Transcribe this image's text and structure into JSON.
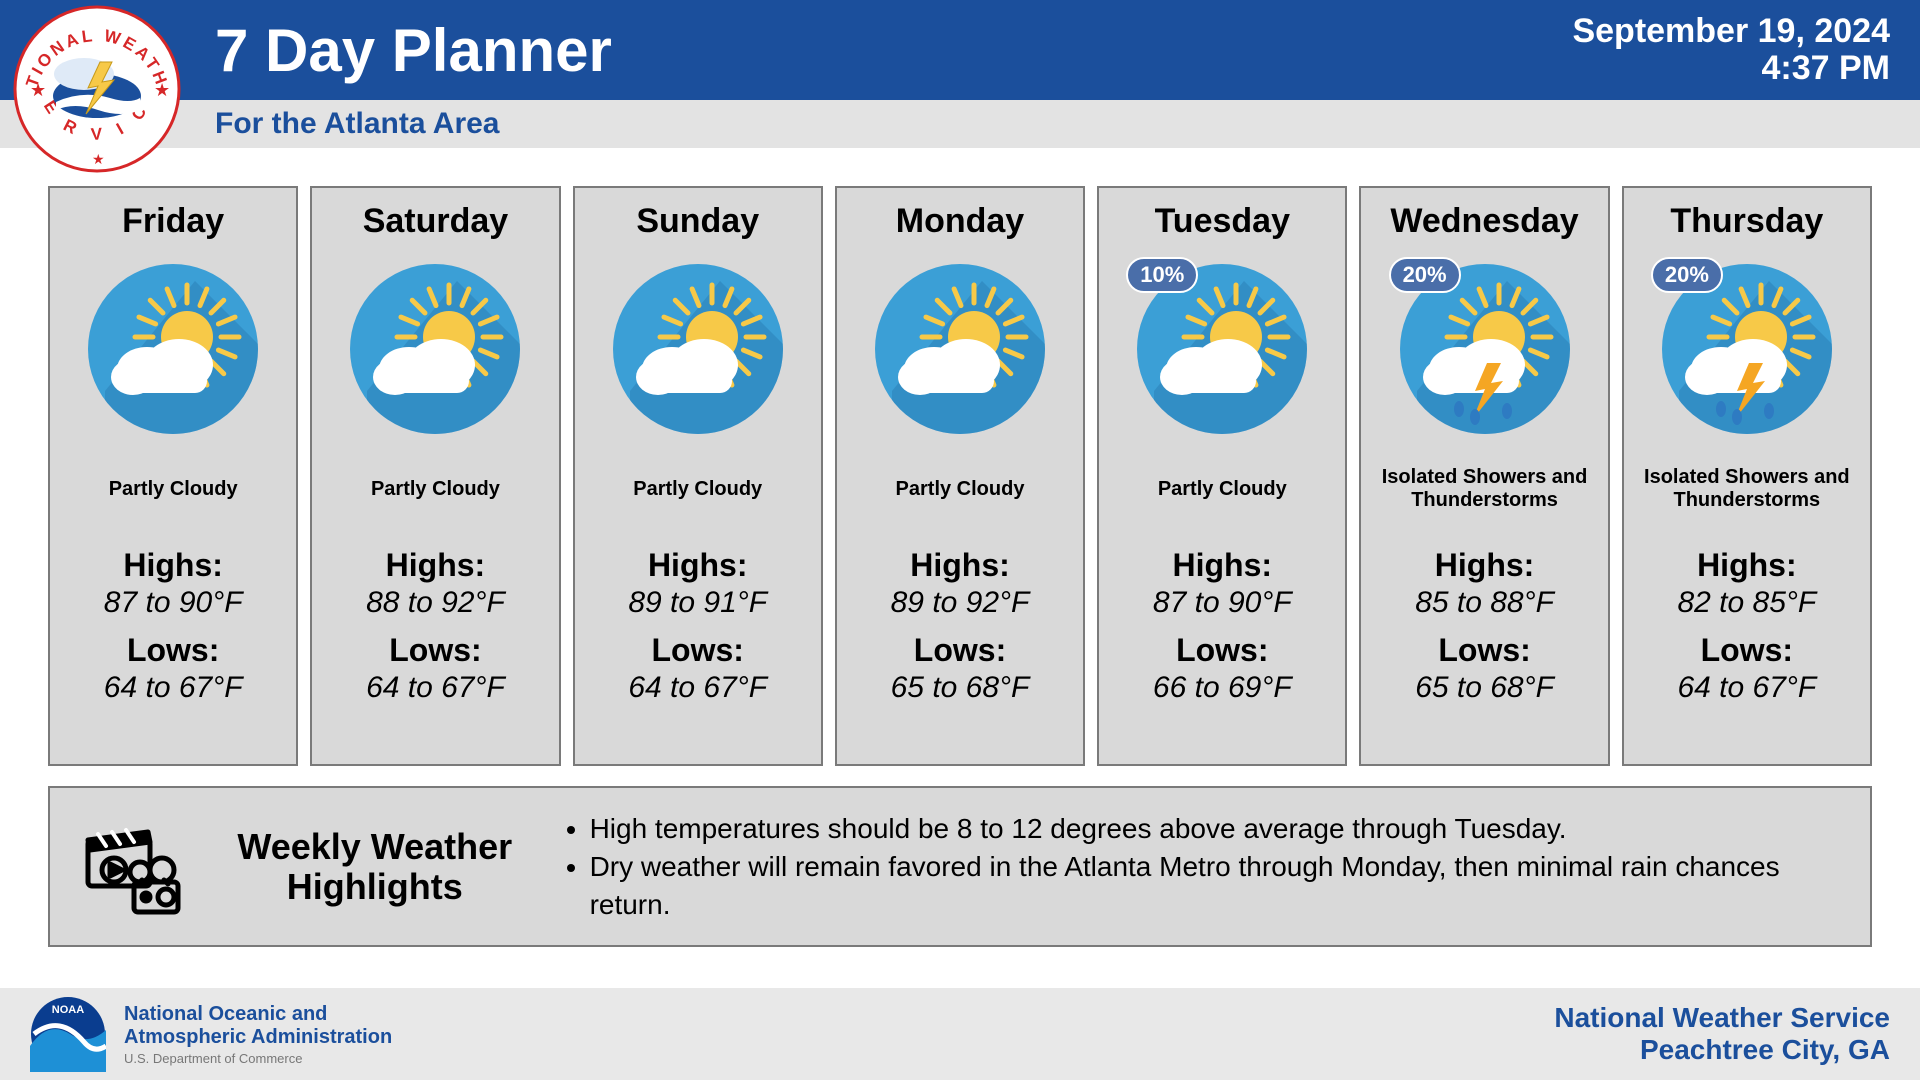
{
  "header": {
    "title": "7 Day Planner",
    "subtitle": "For the Atlanta Area",
    "date": "September 19, 2024",
    "time": "4:37 PM"
  },
  "colors": {
    "header_blue": "#1b4f9c",
    "header_sub_bg": "#e3e3e3",
    "card_bg": "#d9d9d9",
    "card_border": "#7a7a7a",
    "icon_circle": "#3b9fd6",
    "icon_circle_shadow": "#2c7fb8",
    "sun": "#f7c948",
    "cloud": "#ffffff",
    "bolt": "#f5a623",
    "rain": "#2e7bc2",
    "badge_bg": "#4a6ea9",
    "footer_bg": "#e8e8e8",
    "noaa_deep": "#0a3d8f",
    "noaa_light": "#1e90d6"
  },
  "days": [
    {
      "name": "Friday",
      "condition": "Partly Cloudy",
      "icon": "pc",
      "precip": null,
      "high": "87 to 90°F",
      "low": "64 to 67°F"
    },
    {
      "name": "Saturday",
      "condition": "Partly Cloudy",
      "icon": "pc",
      "precip": null,
      "high": "88 to 92°F",
      "low": "64 to 67°F"
    },
    {
      "name": "Sunday",
      "condition": "Partly Cloudy",
      "icon": "pc",
      "precip": null,
      "high": "89 to 91°F",
      "low": "64 to 67°F"
    },
    {
      "name": "Monday",
      "condition": "Partly Cloudy",
      "icon": "pc",
      "precip": null,
      "high": "89 to 92°F",
      "low": "65 to 68°F"
    },
    {
      "name": "Tuesday",
      "condition": "Partly Cloudy",
      "icon": "pc",
      "precip": "10%",
      "high": "87 to 90°F",
      "low": "66 to 69°F"
    },
    {
      "name": "Wednesday",
      "condition": "Isolated Showers and Thunderstorms",
      "icon": "storm",
      "precip": "20%",
      "high": "85 to 88°F",
      "low": "65 to 68°F"
    },
    {
      "name": "Thursday",
      "condition": "Isolated Showers and Thunderstorms",
      "icon": "storm",
      "precip": "20%",
      "high": "82 to 85°F",
      "low": "64 to 67°F"
    }
  ],
  "labels": {
    "highs": "Highs:",
    "lows": "Lows:"
  },
  "highlights": {
    "title": "Weekly Weather Highlights",
    "bullets": [
      "High temperatures should be 8 to 12 degrees above average through Tuesday.",
      "Dry weather will remain favored in the Atlanta Metro through Monday, then minimal rain chances return."
    ]
  },
  "footer": {
    "noaa_line1": "National Oceanic and",
    "noaa_line2": "Atmospheric Administration",
    "noaa_sub": "U.S. Department of Commerce",
    "right_line1": "National Weather Service",
    "right_line2": "Peachtree City, GA"
  }
}
